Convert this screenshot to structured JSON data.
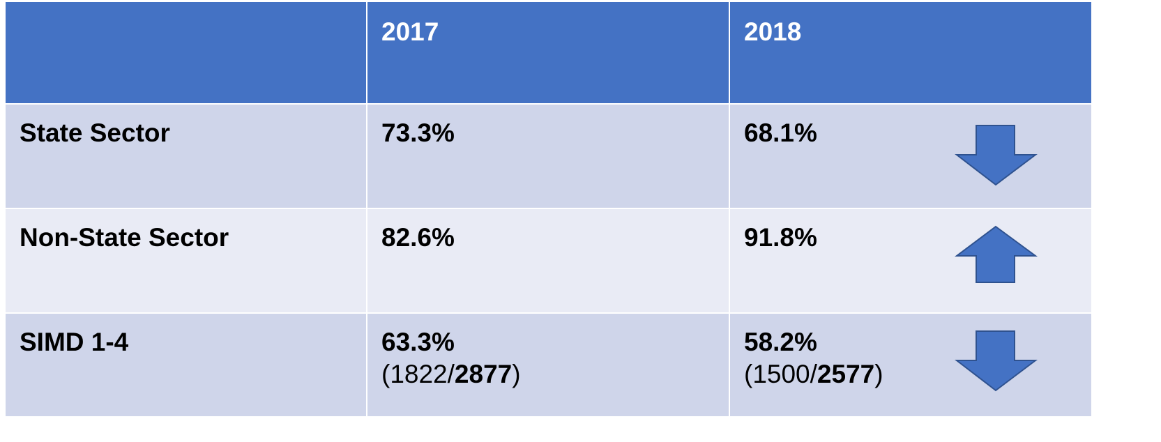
{
  "table": {
    "header": [
      "2017",
      "2018"
    ],
    "rows": [
      {
        "label": "State Sector",
        "cells": [
          "73.3%",
          "68.1%"
        ]
      },
      {
        "label": "Non-State Sector",
        "cells": [
          "82.6%",
          "91.8%"
        ]
      },
      {
        "label": "SIMD 1-4",
        "cells": [
          "63.3%",
          "58.2%"
        ],
        "details": [
          [
            "(1822/",
            "2877",
            ")"
          ],
          [
            "(1500/",
            "2577",
            ")"
          ]
        ]
      }
    ]
  }
}
